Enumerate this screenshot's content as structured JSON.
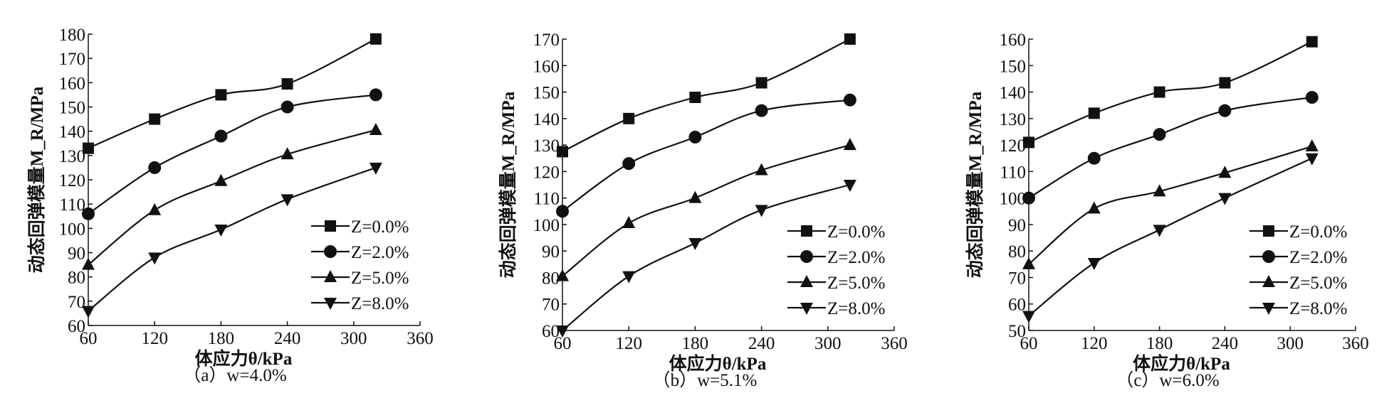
{
  "chart_data": [
    {
      "type": "line",
      "caption": "（a）w=4.0%",
      "xlabel": "体应力θ/kPa",
      "ylabel": "动态回弹模量M_R/MPa",
      "xlim": [
        60,
        360
      ],
      "ylim": [
        60,
        180
      ],
      "xticks": [
        60,
        120,
        180,
        240,
        300,
        360
      ],
      "yticks": [
        60,
        70,
        80,
        90,
        100,
        110,
        120,
        130,
        140,
        150,
        160,
        170,
        180
      ],
      "legend_position": "bottom-right",
      "x": [
        60,
        120,
        180,
        240,
        320
      ],
      "series": [
        {
          "name": "Z=0.0%",
          "marker": "square",
          "values": [
            133,
            145,
            155,
            159.5,
            178
          ]
        },
        {
          "name": "Z=2.0%",
          "marker": "circle",
          "values": [
            106,
            125,
            138,
            150,
            155
          ]
        },
        {
          "name": "Z=5.0%",
          "marker": "triangle-up",
          "values": [
            85,
            107.5,
            119.5,
            130.5,
            140.5
          ]
        },
        {
          "name": "Z=8.0%",
          "marker": "triangle-down",
          "values": [
            66,
            88,
            99.5,
            112,
            125
          ]
        }
      ]
    },
    {
      "type": "line",
      "caption": "（b）w=5.1%",
      "xlabel": "体应力θ/kPa",
      "ylabel": "动态回弹模量M_R/MPa",
      "xlim": [
        60,
        360
      ],
      "ylim": [
        60,
        170
      ],
      "xticks": [
        60,
        120,
        180,
        240,
        300,
        360
      ],
      "yticks": [
        60,
        70,
        80,
        90,
        100,
        110,
        120,
        130,
        140,
        150,
        160,
        170
      ],
      "legend_position": "bottom-right",
      "x": [
        60,
        120,
        180,
        240,
        320
      ],
      "series": [
        {
          "name": "Z=0.0%",
          "marker": "square",
          "values": [
            127.5,
            140,
            148,
            153.5,
            170
          ]
        },
        {
          "name": "Z=2.0%",
          "marker": "circle",
          "values": [
            105,
            123,
            133,
            143,
            147
          ]
        },
        {
          "name": "Z=5.0%",
          "marker": "triangle-up",
          "values": [
            80.5,
            100.5,
            110,
            120.5,
            130
          ]
        },
        {
          "name": "Z=8.0%",
          "marker": "triangle-down",
          "values": [
            60,
            80.5,
            93,
            105.5,
            115
          ]
        }
      ]
    },
    {
      "type": "line",
      "caption": "（c）w=6.0%",
      "xlabel": "体应力θ/kPa",
      "ylabel": "动态回弹模量M_R/MPa",
      "xlim": [
        60,
        360
      ],
      "ylim": [
        50,
        160
      ],
      "xticks": [
        60,
        120,
        180,
        240,
        300,
        360
      ],
      "yticks": [
        50,
        60,
        70,
        80,
        90,
        100,
        110,
        120,
        130,
        140,
        150,
        160
      ],
      "legend_position": "bottom-right",
      "x": [
        60,
        120,
        180,
        240,
        320
      ],
      "series": [
        {
          "name": "Z=0.0%",
          "marker": "square",
          "values": [
            121,
            132,
            140,
            143.5,
            159
          ]
        },
        {
          "name": "Z=2.0%",
          "marker": "circle",
          "values": [
            100,
            115,
            124,
            133,
            138
          ]
        },
        {
          "name": "Z=5.0%",
          "marker": "triangle-up",
          "values": [
            75,
            96,
            102.5,
            109.5,
            119.5
          ]
        },
        {
          "name": "Z=8.0%",
          "marker": "triangle-down",
          "values": [
            55.5,
            75.5,
            88,
            100,
            115
          ]
        }
      ]
    }
  ]
}
